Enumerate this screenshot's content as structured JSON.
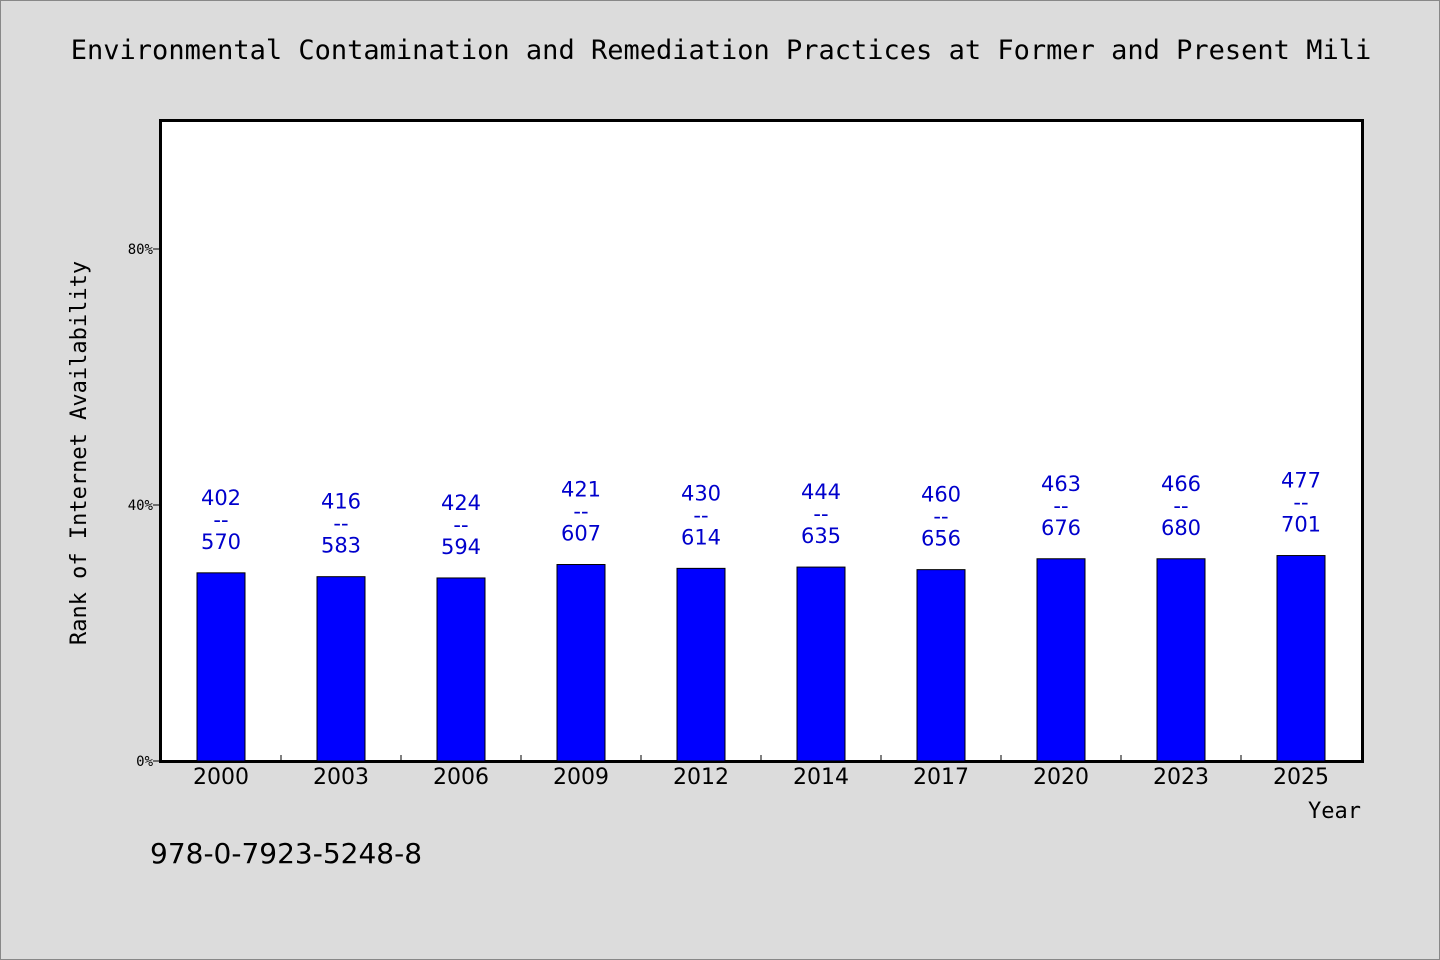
{
  "chart_data": {
    "type": "bar",
    "title": "Environmental Contamination and Remediation Practices at Former and Present Mili",
    "xlabel": "Year",
    "ylabel": "Rank of Internet Availability",
    "categories": [
      "2000",
      "2003",
      "2006",
      "2009",
      "2012",
      "2014",
      "2017",
      "2020",
      "2023",
      "2025"
    ],
    "values": [
      29.4,
      28.8,
      28.6,
      30.7,
      30.1,
      30.3,
      29.9,
      31.6,
      31.6,
      32.1
    ],
    "range_labels": [
      {
        "low": "402",
        "sep": "--",
        "high": "570"
      },
      {
        "low": "416",
        "sep": "--",
        "high": "583"
      },
      {
        "low": "424",
        "sep": "--",
        "high": "594"
      },
      {
        "low": "421",
        "sep": "--",
        "high": "607"
      },
      {
        "low": "430",
        "sep": "--",
        "high": "614"
      },
      {
        "low": "444",
        "sep": "--",
        "high": "635"
      },
      {
        "low": "460",
        "sep": "--",
        "high": "656"
      },
      {
        "low": "463",
        "sep": "--",
        "high": "676"
      },
      {
        "low": "466",
        "sep": "--",
        "high": "680"
      },
      {
        "low": "477",
        "sep": "--",
        "high": "701"
      }
    ],
    "yticks": [
      0,
      40,
      80
    ],
    "ytick_labels": [
      "0%",
      "40%",
      "80%"
    ],
    "ylim": [
      0,
      100
    ],
    "grid": false,
    "bar_color": "#0000ff",
    "label_color": "#0000cc"
  },
  "footer": {
    "isbn": "978-0-7923-5248-8"
  }
}
